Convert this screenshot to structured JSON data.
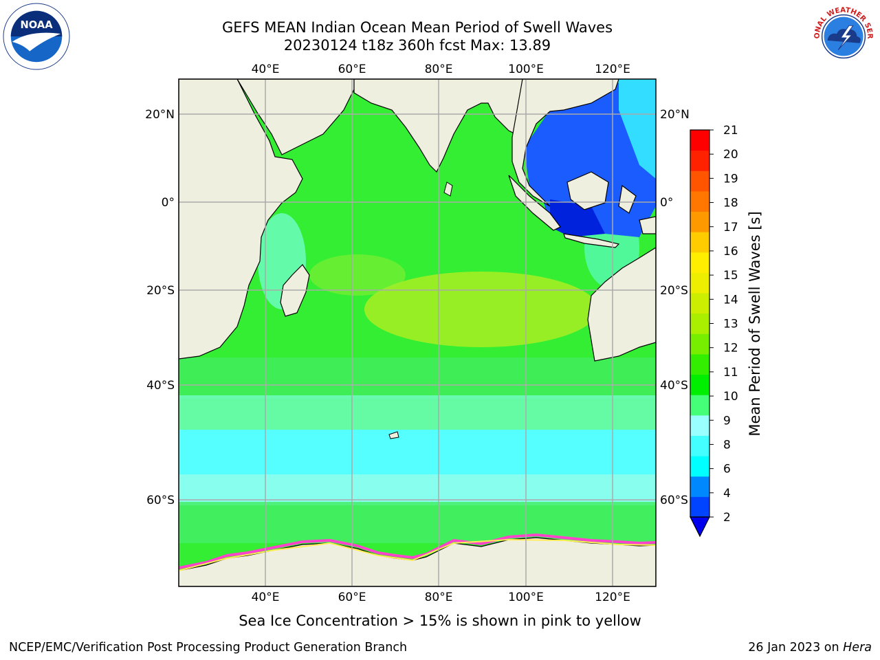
{
  "header": {
    "title_line1": "GEFS MEAN Indian Ocean Mean Period of Swell Waves",
    "title_line2": "20230124 t18z 360h fcst   Max: 13.89"
  },
  "map": {
    "longitude_labels": [
      "40°E",
      "60°E",
      "80°E",
      "100°E",
      "120°E"
    ],
    "latitude_labels": [
      "20°N",
      "0°",
      "20°S",
      "40°S",
      "60°S"
    ],
    "colors": {
      "land": "#efefdf",
      "ice_pink": "#ff44cc",
      "ice_yellow": "#ffee55"
    }
  },
  "colorbar": {
    "title": "Mean Period of Swell Waves [s]",
    "ticks": [
      "2",
      "4",
      "6",
      "8",
      "9",
      "10",
      "11",
      "12",
      "13",
      "14",
      "15",
      "16",
      "17",
      "18",
      "19",
      "20",
      "21"
    ],
    "colors": [
      "#0044ff",
      "#0088ff",
      "#00ffff",
      "#44ffff",
      "#99ffff",
      "#44ff77",
      "#00ee00",
      "#33ee00",
      "#77ee00",
      "#aaee00",
      "#ccee00",
      "#eeee00",
      "#ffee00",
      "#ffcc00",
      "#ff9900",
      "#ff7700",
      "#ff5500",
      "#ff2200",
      "#ff0000"
    ],
    "extend_color": "#0000ee"
  },
  "caption": "Sea Ice Concentration > 15% is shown in pink to yellow",
  "footer": {
    "left": "NCEP/EMC/Verification Post Processing Product Generation Branch",
    "right_date": "26 Jan 2023 on ",
    "right_host": "Hera"
  },
  "logos": {
    "noaa_text": "NOAA",
    "nws_text": "NATIONAL WEATHER SERVICE"
  }
}
